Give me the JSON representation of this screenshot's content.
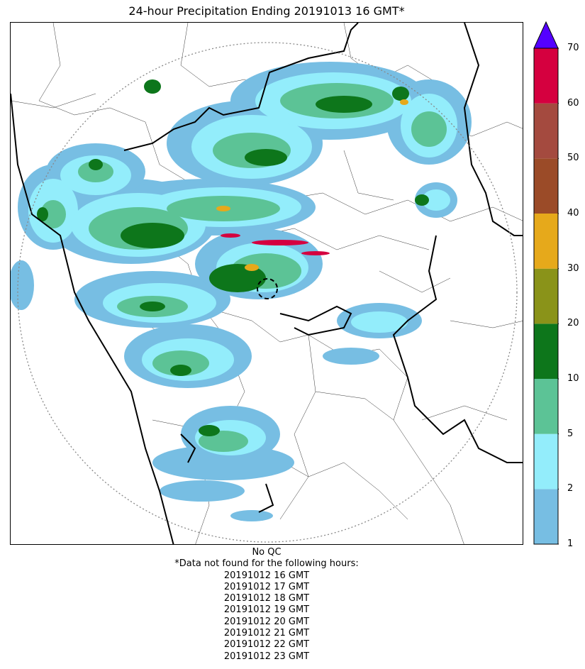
{
  "title": "24-hour Precipitation Ending 20191013 16 GMT*",
  "colorbar": {
    "units_ticks": [
      "1",
      "2",
      "5",
      "10",
      "20",
      "30",
      "40",
      "50",
      "60",
      "70"
    ],
    "levels": [
      {
        "from": 1,
        "to": 2,
        "color": "#77bee3"
      },
      {
        "from": 2,
        "to": 5,
        "color": "#93edfb"
      },
      {
        "from": 5,
        "to": 10,
        "color": "#5cc396"
      },
      {
        "from": 10,
        "to": 20,
        "color": "#0d761b"
      },
      {
        "from": 20,
        "to": 30,
        "color": "#8a9319"
      },
      {
        "from": 30,
        "to": 40,
        "color": "#e6a91b"
      },
      {
        "from": 40,
        "to": 50,
        "color": "#9b4b28"
      },
      {
        "from": 50,
        "to": 60,
        "color": "#a44a3f"
      },
      {
        "from": 60,
        "to": 70,
        "color": "#d5003f"
      }
    ],
    "over_color": "#5400ff"
  },
  "footer": {
    "qc": "No QC",
    "note": "*Data not found for the following hours:",
    "missing_hours": [
      "20191012 16 GMT",
      "20191012 17 GMT",
      "20191012 18 GMT",
      "20191012 19 GMT",
      "20191012 20 GMT",
      "20191012 21 GMT",
      "20191012 22 GMT",
      "20191012 23 GMT"
    ]
  }
}
